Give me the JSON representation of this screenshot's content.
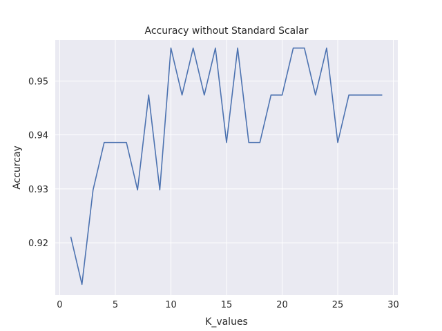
{
  "chart_data": {
    "type": "line",
    "title": "Accuracy without Standard Scalar",
    "xlabel": "K_values",
    "ylabel": "Accurcay",
    "xlim": [
      -0.4,
      30.4
    ],
    "ylim": [
      0.9103,
      0.9576
    ],
    "grid": true,
    "x_ticks": [
      0,
      5,
      10,
      15,
      20,
      25,
      30
    ],
    "y_ticks": [
      0.92,
      0.93,
      0.94,
      0.95
    ],
    "x_tick_labels": [
      "0",
      "5",
      "10",
      "15",
      "20",
      "25",
      "30"
    ],
    "y_tick_labels": [
      "0.92",
      "0.93",
      "0.94",
      "0.95"
    ],
    "series": [
      {
        "color": "#4c72b0",
        "x": [
          1,
          2,
          3,
          4,
          5,
          6,
          7,
          8,
          9,
          10,
          11,
          12,
          13,
          14,
          15,
          16,
          17,
          18,
          19,
          20,
          21,
          22,
          23,
          24,
          25,
          26,
          27,
          28,
          29
        ],
        "values": [
          0.9211,
          0.9123,
          0.9298,
          0.9386,
          0.9386,
          0.9386,
          0.9298,
          0.9474,
          0.9298,
          0.9561,
          0.9474,
          0.9561,
          0.9474,
          0.9561,
          0.9386,
          0.9561,
          0.9386,
          0.9386,
          0.9474,
          0.9474,
          0.9561,
          0.9561,
          0.9474,
          0.9561,
          0.9386,
          0.9474,
          0.9474,
          0.9474,
          0.9474
        ]
      }
    ]
  }
}
